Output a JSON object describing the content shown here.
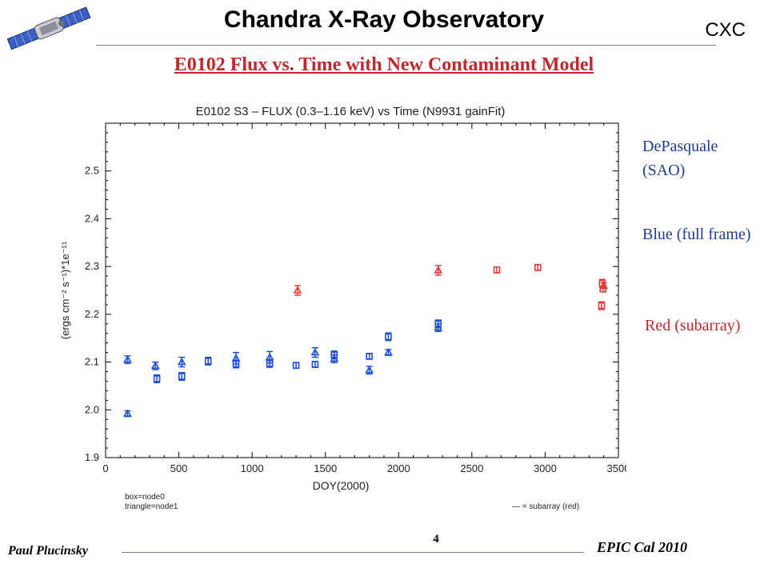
{
  "header": {
    "title": "Chandra X-Ray Observatory",
    "org": "CXC"
  },
  "slide": {
    "title": "E0102 Flux vs. Time with New Contaminant Model",
    "title_color": "#c0282d",
    "notes": {
      "author": "DePasquale (SAO)",
      "blue": "Blue (full frame)",
      "red": "Red (subarray)"
    }
  },
  "footer": {
    "author": "Paul Plucinsky",
    "page": "4",
    "event": "EPIC Cal 2010"
  },
  "colors": {
    "full_frame": "#1f4fe0",
    "subarray": "#e03c3c",
    "note_blue": "#1f3a93"
  },
  "chart_data": {
    "type": "scatter",
    "title": "E0102 S3 – FLUX (0.3–1.16 keV) vs Time (N9931 gainFit)",
    "xlabel": "DOY(2000)",
    "ylabel": "(ergs cm⁻² s⁻¹)*1e⁻¹¹",
    "xlim": [
      0,
      3500
    ],
    "ylim": [
      1.9,
      2.6
    ],
    "x_ticks": [
      0,
      500,
      1000,
      1500,
      2000,
      2500,
      3000,
      3500
    ],
    "y_ticks": [
      1.9,
      2.0,
      2.1,
      2.2,
      2.3,
      2.4,
      2.5
    ],
    "grid": false,
    "legend_notes": [
      "box=node0",
      "triangle=node1",
      "— = subarray (red)"
    ],
    "series": [
      {
        "name": "box=node0",
        "marker": "square",
        "color": "#1f4fe0",
        "points": [
          {
            "x": 350,
            "y": 2.065,
            "err": 0.008
          },
          {
            "x": 520,
            "y": 2.07,
            "err": 0.008
          },
          {
            "x": 700,
            "y": 2.102,
            "err": 0.008
          },
          {
            "x": 890,
            "y": 2.096,
            "err": 0.008
          },
          {
            "x": 1120,
            "y": 2.097,
            "err": 0.008
          },
          {
            "x": 1300,
            "y": 2.093,
            "err": 0.006
          },
          {
            "x": 1430,
            "y": 2.095,
            "err": 0.006
          },
          {
            "x": 1560,
            "y": 2.115,
            "err": 0.008
          },
          {
            "x": 1800,
            "y": 2.112,
            "err": 0.006
          },
          {
            "x": 1930,
            "y": 2.153,
            "err": 0.008
          },
          {
            "x": 2270,
            "y": 2.18,
            "err": 0.008
          }
        ]
      },
      {
        "name": "triangle=node1",
        "marker": "triangle",
        "color": "#1f4fe0",
        "points": [
          {
            "x": 150,
            "y": 2.105,
            "err": 0.008
          },
          {
            "x": 150,
            "y": 1.992,
            "err": 0.006
          },
          {
            "x": 340,
            "y": 2.092,
            "err": 0.008
          },
          {
            "x": 520,
            "y": 2.1,
            "err": 0.01
          },
          {
            "x": 890,
            "y": 2.108,
            "err": 0.012
          },
          {
            "x": 1120,
            "y": 2.11,
            "err": 0.012
          },
          {
            "x": 1430,
            "y": 2.12,
            "err": 0.01
          },
          {
            "x": 1560,
            "y": 2.107,
            "err": 0.008
          },
          {
            "x": 1800,
            "y": 2.083,
            "err": 0.008
          },
          {
            "x": 1930,
            "y": 2.12,
            "err": 0.006
          },
          {
            "x": 2270,
            "y": 2.172,
            "err": 0.008
          }
        ]
      },
      {
        "name": "— = subarray (red)",
        "marker": "mixed",
        "color": "#e03c3c",
        "points": [
          {
            "x": 1310,
            "y": 2.25,
            "err": 0.01,
            "marker": "triangle"
          },
          {
            "x": 2270,
            "y": 2.292,
            "err": 0.01,
            "marker": "triangle"
          },
          {
            "x": 2670,
            "y": 2.293,
            "err": 0.006,
            "marker": "square"
          },
          {
            "x": 2950,
            "y": 2.298,
            "err": 0.006,
            "marker": "square"
          },
          {
            "x": 3390,
            "y": 2.265,
            "err": 0.008,
            "marker": "square"
          },
          {
            "x": 3395,
            "y": 2.253,
            "err": 0.006,
            "marker": "square"
          },
          {
            "x": 3385,
            "y": 2.218,
            "err": 0.008,
            "marker": "square"
          },
          {
            "x": 3400,
            "y": 2.26,
            "err": 0.006,
            "marker": "triangle"
          }
        ]
      }
    ]
  }
}
